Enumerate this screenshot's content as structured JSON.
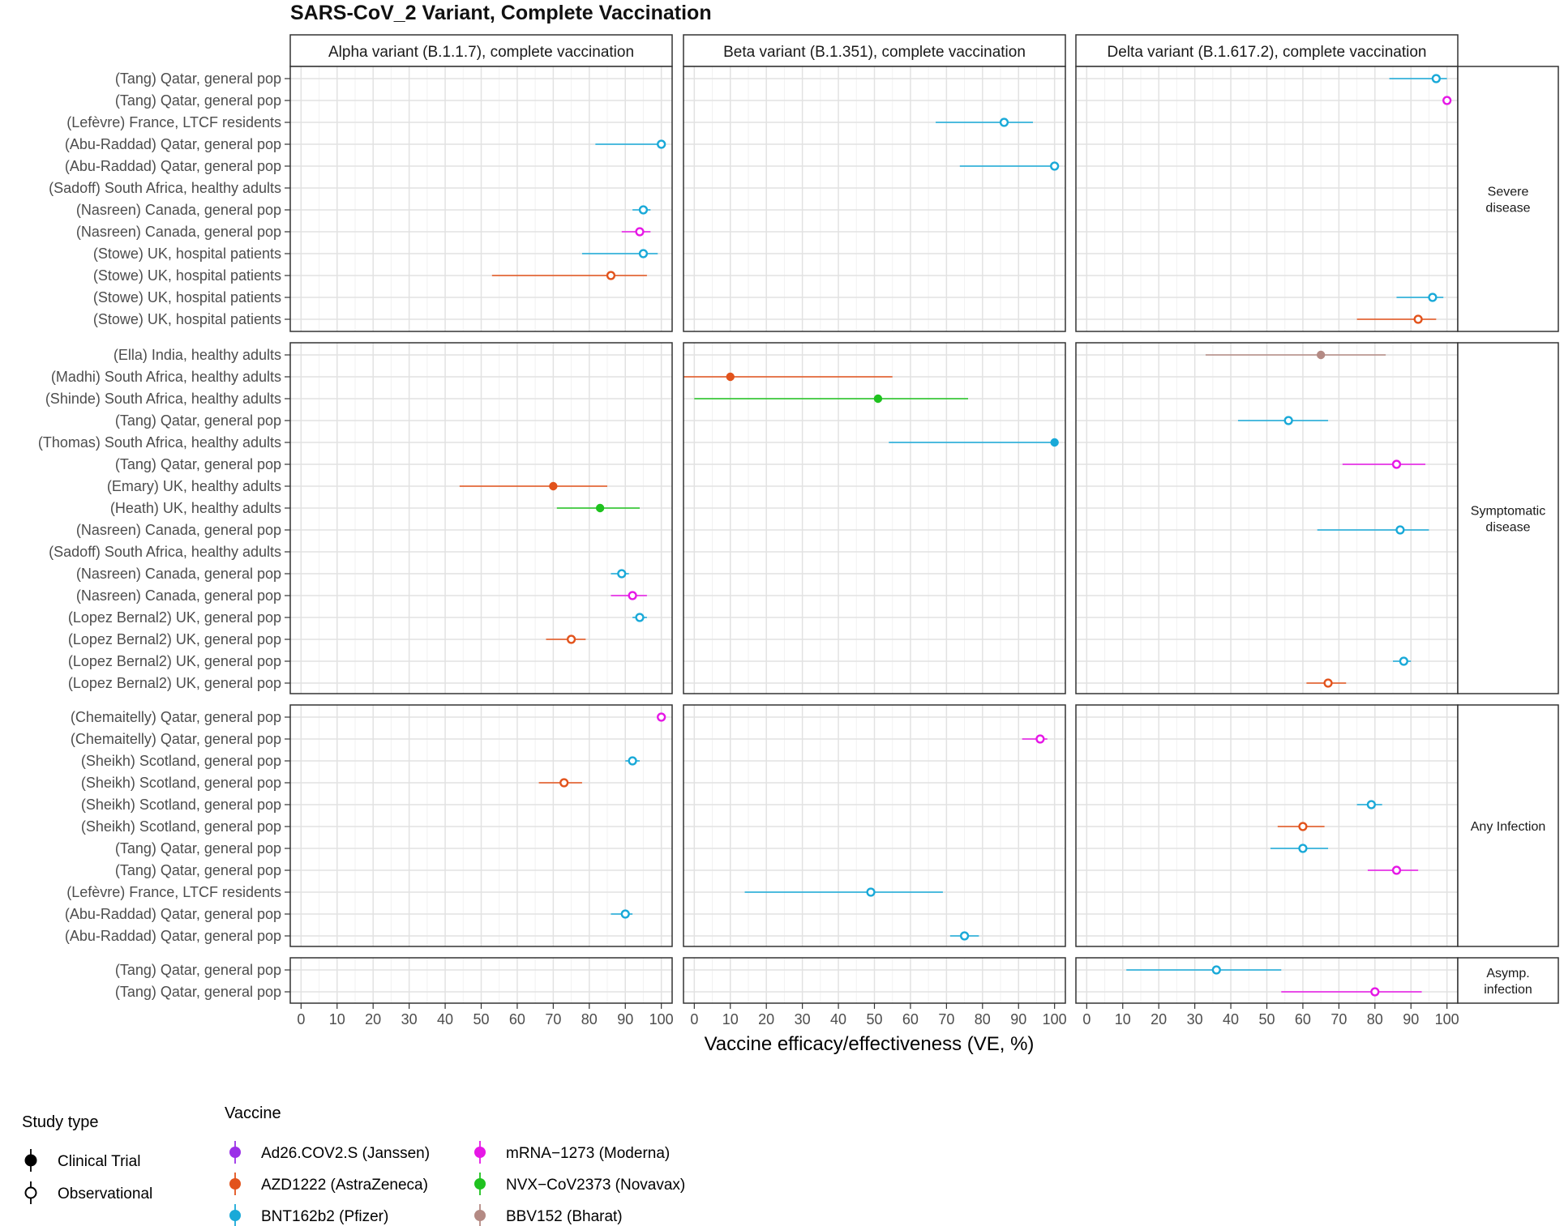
{
  "chart_data": {
    "type": "scatter",
    "subtype": "forest-plot",
    "title": "SARS-CoV_2 Variant, Complete Vaccination",
    "xlabel": "Vaccine efficacy/effectiveness (VE, %)",
    "xlim": [
      -3,
      103
    ],
    "x_ticks": [
      0,
      10,
      20,
      30,
      40,
      50,
      60,
      70,
      80,
      90,
      100
    ],
    "grid": true,
    "legend_placement": "bottom-left",
    "columns": [
      "Alpha variant (B.1.1.7), complete vaccination",
      "Beta variant (B.1.351), complete vaccination",
      "Delta variant (B.1.617.2), complete vaccination"
    ],
    "vaccines": [
      {
        "name": "Ad26.COV2.S (Janssen)",
        "color": "#9b30e8"
      },
      {
        "name": "AZD1222 (AstraZeneca)",
        "color": "#e2531c"
      },
      {
        "name": "BNT162b2 (Pfizer)",
        "color": "#19a9d8"
      },
      {
        "name": "mRNA−1273 (Moderna)",
        "color": "#e617e6"
      },
      {
        "name": "NVX−CoV2373 (Novavax)",
        "color": "#1fc21f"
      },
      {
        "name": "BBV152 (Bharat)",
        "color": "#b48a84"
      }
    ],
    "study_types": [
      {
        "name": "Clinical Trial",
        "filled": true
      },
      {
        "name": "Observational",
        "filled": false
      }
    ],
    "legend_titles": {
      "study": "Study type",
      "vaccine": "Vaccine"
    },
    "rows": [
      {
        "label": "Severe\ndisease",
        "studies": [
          {
            "label": "(Tang) Qatar, general pop",
            "points": [
              null,
              null,
              {
                "v": 2,
                "est": 97,
                "lo": 84,
                "hi": 100,
                "filled": false
              }
            ]
          },
          {
            "label": "(Tang) Qatar, general pop",
            "points": [
              null,
              null,
              {
                "v": 3,
                "est": 100,
                "lo": 100,
                "hi": 100,
                "filled": false
              }
            ]
          },
          {
            "label": "(Lefèvre) France, LTCF residents",
            "points": [
              null,
              {
                "v": 2,
                "est": 86,
                "lo": 67,
                "hi": 94,
                "filled": false
              },
              null
            ]
          },
          {
            "label": "(Abu-Raddad) Qatar, general pop",
            "points": [
              {
                "v": 2,
                "est": 100,
                "lo": 81.7,
                "hi": 100,
                "filled": false
              },
              null,
              null
            ]
          },
          {
            "label": "(Abu-Raddad) Qatar, general pop",
            "points": [
              null,
              {
                "v": 2,
                "est": 100,
                "lo": 73.7,
                "hi": 100,
                "filled": false
              },
              null
            ]
          },
          {
            "label": "(Sadoff) South Africa, healthy adults",
            "points": [
              null,
              null,
              null
            ]
          },
          {
            "label": "(Nasreen) Canada, general pop",
            "points": [
              {
                "v": 2,
                "est": 95,
                "lo": 92,
                "hi": 97,
                "filled": false
              },
              null,
              null
            ]
          },
          {
            "label": "(Nasreen) Canada, general pop",
            "points": [
              {
                "v": 3,
                "est": 94,
                "lo": 89,
                "hi": 97,
                "filled": false
              },
              null,
              null
            ]
          },
          {
            "label": "(Stowe) UK, hospital patients",
            "points": [
              {
                "v": 2,
                "est": 95,
                "lo": 78,
                "hi": 99,
                "filled": false
              },
              null,
              null
            ]
          },
          {
            "label": "(Stowe) UK, hospital patients",
            "points": [
              {
                "v": 1,
                "est": 86,
                "lo": 53,
                "hi": 96,
                "filled": false
              },
              null,
              null
            ]
          },
          {
            "label": "(Stowe) UK, hospital patients",
            "points": [
              null,
              null,
              {
                "v": 2,
                "est": 96,
                "lo": 86,
                "hi": 99,
                "filled": false
              }
            ]
          },
          {
            "label": "(Stowe) UK, hospital patients",
            "points": [
              null,
              null,
              {
                "v": 1,
                "est": 92,
                "lo": 75,
                "hi": 97,
                "filled": false
              }
            ]
          }
        ]
      },
      {
        "label": "Symptomatic\ndisease",
        "studies": [
          {
            "label": "(Ella) India, healthy adults",
            "points": [
              null,
              null,
              {
                "v": 5,
                "est": 65,
                "lo": 33,
                "hi": 83,
                "filled": true
              }
            ]
          },
          {
            "label": "(Madhi) South Africa, healthy adults",
            "points": [
              null,
              {
                "v": 1,
                "est": 10,
                "lo": -3,
                "hi": 55,
                "filled": true
              },
              null
            ]
          },
          {
            "label": "(Shinde) South Africa, healthy adults",
            "points": [
              null,
              {
                "v": 4,
                "est": 51,
                "lo": 0,
                "hi": 76,
                "filled": true
              },
              null
            ]
          },
          {
            "label": "(Tang) Qatar, general pop",
            "points": [
              null,
              null,
              {
                "v": 2,
                "est": 56,
                "lo": 42,
                "hi": 67,
                "filled": false
              }
            ]
          },
          {
            "label": "(Thomas) South Africa, healthy adults",
            "points": [
              null,
              {
                "v": 2,
                "est": 100,
                "lo": 54,
                "hi": 100,
                "filled": true
              },
              null
            ]
          },
          {
            "label": "(Tang) Qatar, general pop",
            "points": [
              null,
              null,
              {
                "v": 3,
                "est": 86,
                "lo": 71,
                "hi": 94,
                "filled": false
              }
            ]
          },
          {
            "label": "(Emary) UK, healthy adults",
            "points": [
              {
                "v": 1,
                "est": 70,
                "lo": 44,
                "hi": 85,
                "filled": true
              },
              null,
              null
            ]
          },
          {
            "label": "(Heath) UK, healthy adults",
            "points": [
              {
                "v": 4,
                "est": 83,
                "lo": 71,
                "hi": 94,
                "filled": true
              },
              null,
              null
            ]
          },
          {
            "label": "(Nasreen) Canada, general pop",
            "points": [
              null,
              null,
              {
                "v": 2,
                "est": 87,
                "lo": 64,
                "hi": 95,
                "filled": false
              }
            ]
          },
          {
            "label": "(Sadoff) South Africa, healthy adults",
            "points": [
              null,
              null,
              null
            ]
          },
          {
            "label": "(Nasreen) Canada, general pop",
            "points": [
              {
                "v": 2,
                "est": 89,
                "lo": 86,
                "hi": 91,
                "filled": false
              },
              null,
              null
            ]
          },
          {
            "label": "(Nasreen) Canada, general pop",
            "points": [
              {
                "v": 3,
                "est": 92,
                "lo": 86,
                "hi": 96,
                "filled": false
              },
              null,
              null
            ]
          },
          {
            "label": "(Lopez Bernal2) UK, general pop",
            "points": [
              {
                "v": 2,
                "est": 94,
                "lo": 92,
                "hi": 96,
                "filled": false
              },
              null,
              null
            ]
          },
          {
            "label": "(Lopez Bernal2) UK, general pop",
            "points": [
              {
                "v": 1,
                "est": 75,
                "lo": 68,
                "hi": 79,
                "filled": false
              },
              null,
              null
            ]
          },
          {
            "label": "(Lopez Bernal2) UK, general pop",
            "points": [
              null,
              null,
              {
                "v": 2,
                "est": 88,
                "lo": 85,
                "hi": 90,
                "filled": false
              }
            ]
          },
          {
            "label": "(Lopez Bernal2) UK, general pop",
            "points": [
              null,
              null,
              {
                "v": 1,
                "est": 67,
                "lo": 61,
                "hi": 72,
                "filled": false
              }
            ]
          }
        ]
      },
      {
        "label": "Any Infection",
        "studies": [
          {
            "label": "(Chemaitelly) Qatar, general pop",
            "points": [
              {
                "v": 3,
                "est": 100,
                "lo": 100,
                "hi": 100,
                "filled": false
              },
              null,
              null
            ]
          },
          {
            "label": "(Chemaitelly) Qatar, general pop",
            "points": [
              null,
              {
                "v": 3,
                "est": 96,
                "lo": 91,
                "hi": 98,
                "filled": false
              },
              null
            ]
          },
          {
            "label": "(Sheikh) Scotland, general pop",
            "points": [
              {
                "v": 2,
                "est": 92,
                "lo": 90,
                "hi": 94,
                "filled": false
              },
              null,
              null
            ]
          },
          {
            "label": "(Sheikh) Scotland, general pop",
            "points": [
              {
                "v": 1,
                "est": 73,
                "lo": 66,
                "hi": 78,
                "filled": false
              },
              null,
              null
            ]
          },
          {
            "label": "(Sheikh) Scotland, general pop",
            "points": [
              null,
              null,
              {
                "v": 2,
                "est": 79,
                "lo": 75,
                "hi": 82,
                "filled": false
              }
            ]
          },
          {
            "label": "(Sheikh) Scotland, general pop",
            "points": [
              null,
              null,
              {
                "v": 1,
                "est": 60,
                "lo": 53,
                "hi": 66,
                "filled": false
              }
            ]
          },
          {
            "label": "(Tang) Qatar, general pop",
            "points": [
              null,
              null,
              {
                "v": 2,
                "est": 60,
                "lo": 51,
                "hi": 67,
                "filled": false
              }
            ]
          },
          {
            "label": "(Tang) Qatar, general pop",
            "points": [
              null,
              null,
              {
                "v": 3,
                "est": 86,
                "lo": 78,
                "hi": 92,
                "filled": false
              }
            ]
          },
          {
            "label": "(Lefèvre) France, LTCF residents",
            "points": [
              null,
              {
                "v": 2,
                "est": 49,
                "lo": 14,
                "hi": 69,
                "filled": false
              },
              null
            ]
          },
          {
            "label": "(Abu-Raddad) Qatar, general pop",
            "points": [
              {
                "v": 2,
                "est": 90,
                "lo": 86,
                "hi": 92,
                "filled": false
              },
              null,
              null
            ]
          },
          {
            "label": "(Abu-Raddad) Qatar, general pop",
            "points": [
              null,
              {
                "v": 2,
                "est": 75,
                "lo": 71,
                "hi": 79,
                "filled": false
              },
              null
            ]
          }
        ]
      },
      {
        "label": "Asymp.\ninfection",
        "studies": [
          {
            "label": "(Tang) Qatar, general pop",
            "points": [
              null,
              null,
              {
                "v": 2,
                "est": 36,
                "lo": 11,
                "hi": 54,
                "filled": false
              }
            ]
          },
          {
            "label": "(Tang) Qatar, general pop",
            "points": [
              null,
              null,
              {
                "v": 3,
                "est": 80,
                "lo": 54,
                "hi": 93,
                "filled": false
              }
            ]
          }
        ]
      }
    ]
  }
}
